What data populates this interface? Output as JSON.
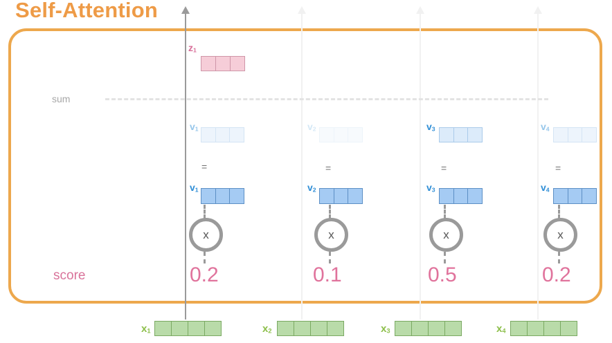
{
  "title": "Self-Attention",
  "row_labels": {
    "sum": "sum",
    "score": "score"
  },
  "output": {
    "label": "z",
    "sub": "1"
  },
  "equals": "=",
  "times": "x",
  "columns": [
    {
      "v_label": "v",
      "v_sub": "1",
      "x_label": "x",
      "x_sub": "1",
      "score": "0.2",
      "weighted_opacity": 0.5
    },
    {
      "v_label": "v",
      "v_sub": "2",
      "x_label": "x",
      "x_sub": "2",
      "score": "0.1",
      "weighted_opacity": 0.2
    },
    {
      "v_label": "v",
      "v_sub": "3",
      "x_label": "x",
      "x_sub": "3",
      "score": "0.5",
      "weighted_opacity": 1.0
    },
    {
      "v_label": "v",
      "v_sub": "4",
      "x_label": "x",
      "x_sub": "4",
      "score": "0.2",
      "weighted_opacity": 0.5
    }
  ],
  "colors": {
    "title": "#ee9b47",
    "frame": "#eda84d",
    "value_vector": "#a5cbf3",
    "input_vector": "#b9dba9",
    "output_vector": "#f6cdd8",
    "score": "#e0739c"
  }
}
